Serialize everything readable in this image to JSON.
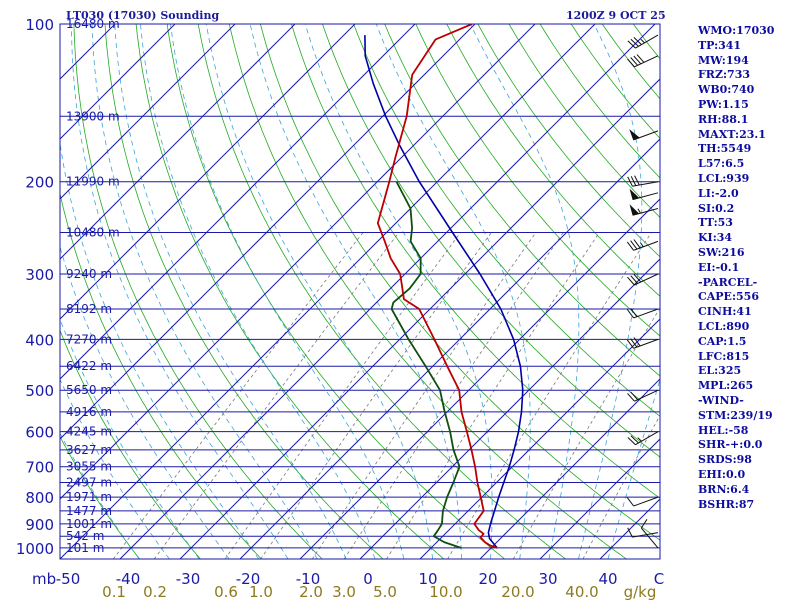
{
  "header": {
    "station_title": "LT030 (17030) Sounding",
    "valid_time": "1200Z  9 OCT 25"
  },
  "colors": {
    "frame": "#1a1aa8",
    "isobar": "#1a1aa8",
    "dry_adiabat": "#22aa22",
    "moist_adiabat": "#3aa5d8",
    "mixing_ratio": "#777777",
    "temperature": "#bb0000",
    "dewpoint": "#0f4f0f",
    "parcel": "#0000a8",
    "axis_text": "#1a1aa8",
    "mixing_text": "#8c7a1e",
    "wind_barb": "#111111"
  },
  "chart_data": {
    "type": "skew-t log-p sounding",
    "pressure_axis_label": "mb",
    "pressure_range_mb": [
      100,
      1050
    ],
    "temperature_range_c": [
      -50,
      50
    ],
    "pressure_ticks": [
      100,
      200,
      300,
      400,
      500,
      600,
      700,
      800,
      900,
      1000
    ],
    "temperature_ticks": [
      -50,
      -40,
      -30,
      -20,
      -10,
      0,
      10,
      20,
      30,
      40
    ],
    "temperature_axis_end_label": "C",
    "isobars": [
      {
        "p": 100,
        "height": "16480 m"
      },
      {
        "p": 150,
        "height": "13900 m"
      },
      {
        "p": 200,
        "height": "11990 m"
      },
      {
        "p": 250,
        "height": "10480 m"
      },
      {
        "p": 300,
        "height": "9240 m"
      },
      {
        "p": 350,
        "height": "8192 m"
      },
      {
        "p": 400,
        "height": "7270 m"
      },
      {
        "p": 450,
        "height": "6422 m"
      },
      {
        "p": 500,
        "height": "5650 m"
      },
      {
        "p": 550,
        "height": "4916 m"
      },
      {
        "p": 600,
        "height": "4245 m"
      },
      {
        "p": 650,
        "height": "3627 m"
      },
      {
        "p": 700,
        "height": "3055 m"
      },
      {
        "p": 750,
        "height": "2497 m"
      },
      {
        "p": 800,
        "height": "1971 m"
      },
      {
        "p": 850,
        "height": "1477 m"
      },
      {
        "p": 900,
        "height": "1001 m"
      },
      {
        "p": 950,
        "height": "542 m"
      },
      {
        "p": 1000,
        "height": "101 m"
      }
    ],
    "mixing_ratio_labels": [
      "0.1",
      "0.2",
      "0.6",
      "1.0",
      "2.0",
      "3.0",
      "5.0",
      "10.0",
      "20.0",
      "40.0"
    ],
    "mixing_ratio_unit": "g/kg",
    "temperature_profile": [
      {
        "p": 1000,
        "t": 21
      },
      {
        "p": 990,
        "t": 19.5
      },
      {
        "p": 975,
        "t": 18
      },
      {
        "p": 955,
        "t": 16.5
      },
      {
        "p": 940,
        "t": 16.4
      },
      {
        "p": 925,
        "t": 15
      },
      {
        "p": 900,
        "t": 13.2
      },
      {
        "p": 850,
        "t": 12.6
      },
      {
        "p": 800,
        "t": 9.8
      },
      {
        "p": 750,
        "t": 6.8
      },
      {
        "p": 700,
        "t": 3.8
      },
      {
        "p": 650,
        "t": 0.4
      },
      {
        "p": 600,
        "t": -3.4
      },
      {
        "p": 550,
        "t": -7.6
      },
      {
        "p": 500,
        "t": -11.6
      },
      {
        "p": 450,
        "t": -17.6
      },
      {
        "p": 400,
        "t": -24.2
      },
      {
        "p": 350,
        "t": -31.8
      },
      {
        "p": 335,
        "t": -36
      },
      {
        "p": 320,
        "t": -38
      },
      {
        "p": 300,
        "t": -40.8
      },
      {
        "p": 280,
        "t": -45
      },
      {
        "p": 260,
        "t": -48.8
      },
      {
        "p": 240,
        "t": -53
      },
      {
        "p": 200,
        "t": -58
      },
      {
        "p": 180,
        "t": -61
      },
      {
        "p": 150,
        "t": -66
      },
      {
        "p": 125,
        "t": -72
      },
      {
        "p": 107,
        "t": -74
      },
      {
        "p": 100,
        "t": -70.5
      }
    ],
    "dewpoint_profile": [
      {
        "p": 1000,
        "td": 15
      },
      {
        "p": 975,
        "td": 11.2
      },
      {
        "p": 950,
        "td": 8.5
      },
      {
        "p": 925,
        "td": 8.2
      },
      {
        "p": 900,
        "td": 7.8
      },
      {
        "p": 850,
        "td": 5.8
      },
      {
        "p": 800,
        "td": 4.2
      },
      {
        "p": 750,
        "td": 2.8
      },
      {
        "p": 700,
        "td": 1.2
      },
      {
        "p": 650,
        "td": -2.6
      },
      {
        "p": 600,
        "td": -6.2
      },
      {
        "p": 550,
        "td": -10.4
      },
      {
        "p": 500,
        "td": -14.8
      },
      {
        "p": 450,
        "td": -21.2
      },
      {
        "p": 400,
        "td": -28.5
      },
      {
        "p": 350,
        "td": -36.4
      },
      {
        "p": 340,
        "td": -37.2
      },
      {
        "p": 320,
        "td": -36.8
      },
      {
        "p": 300,
        "td": -37.4
      },
      {
        "p": 280,
        "td": -40
      },
      {
        "p": 260,
        "td": -44.5
      },
      {
        "p": 245,
        "td": -46.5
      },
      {
        "p": 225,
        "td": -50
      },
      {
        "p": 200,
        "td": -56.8
      }
    ],
    "parcel_path": [
      {
        "p": 1000,
        "t": 21
      },
      {
        "p": 960,
        "t": 18.2
      },
      {
        "p": 935,
        "t": 17
      },
      {
        "p": 890,
        "t": 15.6
      },
      {
        "p": 850,
        "t": 14.4
      },
      {
        "p": 800,
        "t": 12.8
      },
      {
        "p": 750,
        "t": 11.2
      },
      {
        "p": 700,
        "t": 9.5
      },
      {
        "p": 650,
        "t": 7.5
      },
      {
        "p": 600,
        "t": 5.2
      },
      {
        "p": 550,
        "t": 2.4
      },
      {
        "p": 500,
        "t": -1
      },
      {
        "p": 450,
        "t": -5.4
      },
      {
        "p": 400,
        "t": -11
      },
      {
        "p": 350,
        "t": -18.2
      },
      {
        "p": 300,
        "t": -27.5
      },
      {
        "p": 250,
        "t": -39
      },
      {
        "p": 200,
        "t": -53
      },
      {
        "p": 170,
        "t": -62.5
      },
      {
        "p": 150,
        "t": -69.5
      },
      {
        "p": 130,
        "t": -77
      },
      {
        "p": 115,
        "t": -83
      },
      {
        "p": 105,
        "t": -86.5
      }
    ],
    "wind_barbs": [
      {
        "p": 1000,
        "dir": 320,
        "kt": 10
      },
      {
        "p": 935,
        "dir": 260,
        "kt": 10
      },
      {
        "p": 800,
        "dir": 250,
        "kt": 10
      },
      {
        "p": 600,
        "dir": 240,
        "kt": 25
      },
      {
        "p": 500,
        "dir": 245,
        "kt": 20
      },
      {
        "p": 400,
        "dir": 250,
        "kt": 30
      },
      {
        "p": 350,
        "dir": 250,
        "kt": 20
      },
      {
        "p": 300,
        "dir": 245,
        "kt": 30
      },
      {
        "p": 260,
        "dir": 250,
        "kt": 35
      },
      {
        "p": 225,
        "dir": 255,
        "kt": 55
      },
      {
        "p": 210,
        "dir": 255,
        "kt": 50
      },
      {
        "p": 200,
        "dir": 260,
        "kt": 30
      },
      {
        "p": 160,
        "dir": 250,
        "kt": 50
      },
      {
        "p": 115,
        "dir": 245,
        "kt": 40
      },
      {
        "p": 105,
        "dir": 240,
        "kt": 35
      }
    ]
  },
  "stats": [
    "WMO:17030",
    "TP:341",
    "MW:194",
    "FRZ:733",
    "WB0:740",
    "PW:1.15",
    "RH:88.1",
    "MAXT:23.1",
    "TH:5549",
    "L57:6.5",
    "LCL:939",
    "LI:-2.0",
    "SI:0.2",
    "TT:53",
    "KI:34",
    "SW:216",
    "EI:-0.1",
    "-PARCEL-",
    "CAPE:556",
    "CINH:41",
    "LCL:890",
    "CAP:1.5",
    "LFC:815",
    "EL:325",
    "MPL:265",
    "-WIND-",
    "STM:239/19",
    "HEL:-58",
    "SHR-+:0.0",
    "SRDS:98",
    "EHI:0.0",
    "BRN:6.4",
    "BSHR:87"
  ]
}
